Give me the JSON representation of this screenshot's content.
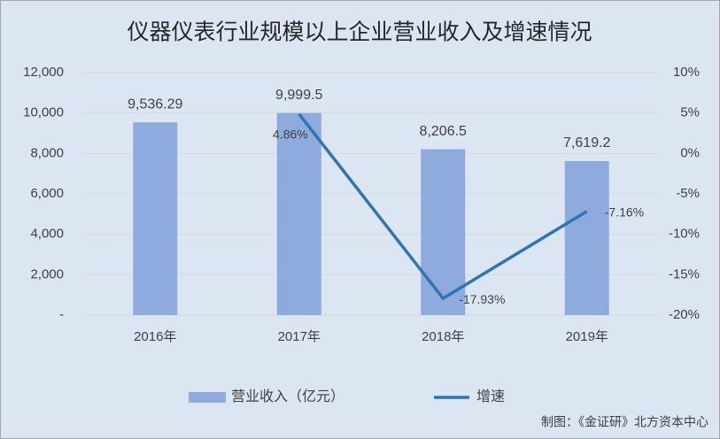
{
  "chart_data": {
    "type": "bar",
    "title": "仪器仪表行业规模以上企业营业收入及增速情况",
    "categories": [
      "2016年",
      "2017年",
      "2018年",
      "2019年"
    ],
    "series": [
      {
        "name": "营业收入（亿元）",
        "type": "bar",
        "color": "#8faadc",
        "axis": "y",
        "values": [
          9536.29,
          9999.5,
          8206.5,
          7619.2
        ],
        "value_labels": [
          "9,536.29",
          "9,999.5",
          "8,206.5",
          "7,619.2"
        ]
      },
      {
        "name": "增速",
        "type": "line",
        "color": "#2e75b6",
        "axis": "y2",
        "values": [
          null,
          4.86,
          -17.93,
          -7.16
        ],
        "value_labels": [
          null,
          "4.86%",
          "-17.93%",
          "-7.16%"
        ]
      }
    ],
    "ylim": [
      0,
      12000
    ],
    "yticks": [
      {
        "value": 0,
        "label": "-"
      },
      {
        "value": 2000,
        "label": "2,000"
      },
      {
        "value": 4000,
        "label": "4,000"
      },
      {
        "value": 6000,
        "label": "6,000"
      },
      {
        "value": 8000,
        "label": "8,000"
      },
      {
        "value": 10000,
        "label": "10,000"
      },
      {
        "value": 12000,
        "label": "12,000"
      }
    ],
    "y2lim": [
      -20,
      10
    ],
    "y2ticks": [
      {
        "value": -20,
        "label": "-20%"
      },
      {
        "value": -15,
        "label": "-15%"
      },
      {
        "value": -10,
        "label": "-10%"
      },
      {
        "value": -5,
        "label": "-5%"
      },
      {
        "value": 0,
        "label": "0%"
      },
      {
        "value": 5,
        "label": "5%"
      },
      {
        "value": 10,
        "label": "10%"
      }
    ],
    "grid": true,
    "source": "制图：《金证研》北方资本中心"
  }
}
